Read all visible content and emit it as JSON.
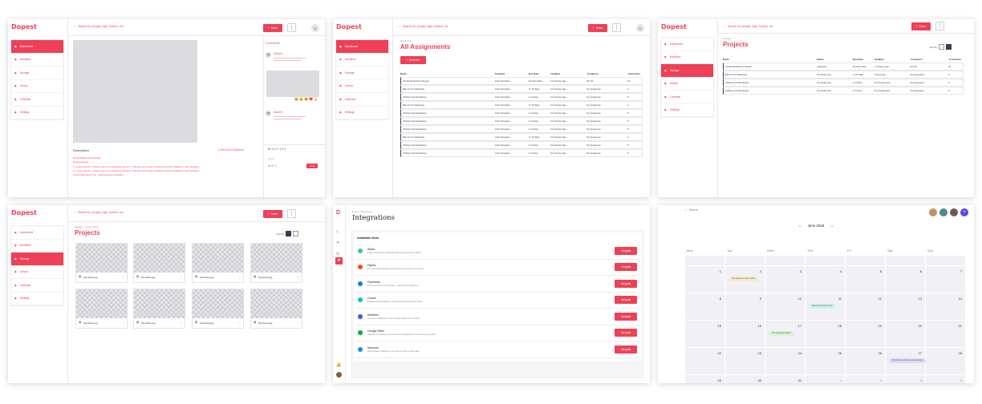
{
  "brand": "Dopest",
  "search_placeholder": "Search for people, logs, folders, etc",
  "share_label": "Share",
  "avatar_initial": "D",
  "nav": [
    "Dashboard",
    "Workflow",
    "Storage",
    "Library",
    "Calendar",
    "Settings"
  ],
  "colors": {
    "accent": "#ee4056",
    "dark": "#3a3a55",
    "violet": "#5b45e0"
  },
  "detail": {
    "comments_title": "Comments",
    "c1_name": "David K",
    "c2_name": "David K",
    "emoji": "😂 😮 🤩 ❤️ 💡",
    "desc_title": "Description",
    "record_label": "Record a Comment",
    "post_name": "Social Media Post Design",
    "req_label": "Requirements",
    "req1": "1. Lorem ipsum, or lipsum as it is sometimes known, is dummy text used in laying out print, graphic or web designs.",
    "req2": "2. Lorem ipsum, or lipsum as it is sometimes known, is dummy text used in laying out print, graphic or web designs.",
    "visual_ref": "Visual Reference link - www.google.com/abcd",
    "reply_placeholder": "Reply",
    "send_label": "Send",
    "toolbar": "B  I  U  |  ✎  |  ≡  ≡"
  },
  "assignments": {
    "crumb": "Dashboard",
    "title": "All Assignments",
    "new_label": "New Item",
    "headers": [
      "Name",
      "Template",
      "Due Date",
      "Updated",
      "Assignees",
      "Comments"
    ],
    "rows": [
      [
        "Social Media Post Design",
        "Auto Template",
        "No Due Date",
        "14 minutes ago",
        "DA  SA",
        "15"
      ],
      [
        "Banner for Marketing",
        "Auto Template",
        "In 15 days",
        "15 minutes ago",
        "No Assignees",
        "3"
      ],
      [
        "Visiting Card Redesign",
        "Auto Template",
        "In 5 days",
        "16 minutes ago",
        "No Assignees",
        "5"
      ],
      [
        "Banner for Marketing",
        "Auto Template",
        "In 15 days",
        "15 minutes ago",
        "No Assignees",
        "3"
      ],
      [
        "Visiting Card Redesign",
        "Auto Template",
        "In 5 days",
        "16 minutes ago",
        "No Assignees",
        "5"
      ],
      [
        "Visiting Card Redesign",
        "Auto Template",
        "In 5 days",
        "16 minutes ago",
        "No Assignees",
        "5"
      ],
      [
        "Visiting Card Redesign",
        "Auto Template",
        "In 5 days",
        "16 minutes ago",
        "No Assignees",
        "5"
      ],
      [
        "Banner for Marketing",
        "Auto Template",
        "In 15 days",
        "15 minutes ago",
        "No Assignees",
        "3"
      ],
      [
        "Visiting Card Redesign",
        "Auto Template",
        "In 5 days",
        "16 minutes ago",
        "No Assignees",
        "5"
      ],
      [
        "Visiting Card Redesign",
        "Auto Template",
        "In 5 days",
        "16 minutes ago",
        "No Assignees",
        "5"
      ]
    ]
  },
  "projects": {
    "crumb": "Storage",
    "title": "Projects",
    "view_label": "View By",
    "headers": [
      "Name",
      "Status",
      "Due Date",
      "Updated",
      "Assignees",
      "Comments"
    ],
    "rows": [
      [
        "Social Media Post Design",
        "Approved",
        "No Due Date",
        "1 minutes ago",
        "DA  SA",
        "15"
      ],
      [
        "Banner for Marketing",
        "Not Approved",
        "In 15 days",
        "5 days ago",
        "No Assignees",
        "3"
      ],
      [
        "Visiting Card Redesign",
        "Not Approved",
        "In 5 days",
        "15 minutes ago",
        "No Assignees",
        "5"
      ],
      [
        "Visiting Card Redesign",
        "Not Approved",
        "In 5 days",
        "15 minutes ago",
        "No Assignees",
        "5"
      ]
    ]
  },
  "grid": {
    "crumb": "Storage > Project Name",
    "title": "Projects",
    "view_label": "View By",
    "file_name": "File Name.jpg"
  },
  "integrations": {
    "crumb": "Home > Integrations",
    "title": "Integrations",
    "section": "Available Now",
    "button": "Integrate",
    "items": [
      {
        "name": "Slack",
        "desc": "Track several tools, calendars and update directly in Slack"
      },
      {
        "name": "Figma",
        "desc": "Put your Figma designs into Dopest as list items to comment"
      },
      {
        "name": "Facebook",
        "desc": "Track comments on facebook + directly from Facebook"
      },
      {
        "name": "Canva",
        "desc": "Enhance Canva design in the Dopest at the click of a button"
      },
      {
        "name": "Webflow",
        "desc": "Connect to Webflow to your website directly from Dopest"
      },
      {
        "name": "Google Meet",
        "desc": "Integrate a meeting to comment and collaborate in real time at any session"
      },
      {
        "name": "Intercom",
        "desc": "Post contacts straight to your Intercom lists to help sales"
      }
    ],
    "icon_colors": [
      "#36c5a8",
      "#f24e1e",
      "#1877f2",
      "#00c4cc",
      "#4353ff",
      "#00ac47",
      "#1f8ded"
    ]
  },
  "calendar": {
    "search": "Search",
    "month": "June 2019",
    "days": [
      "Mon",
      "Tue",
      "Wed",
      "Thu",
      "Fri",
      "Sat",
      "Sun"
    ],
    "weeks": [
      [
        "",
        "",
        "",
        "",
        "",
        "",
        ""
      ],
      [
        "1",
        "2",
        "3",
        "4",
        "5",
        "6",
        "7"
      ],
      [
        "8",
        "9",
        "10",
        "11",
        "12",
        "13",
        "14"
      ],
      [
        "15",
        "16",
        "17",
        "18",
        "19",
        "20",
        "21"
      ],
      [
        "22",
        "23",
        "24",
        "25",
        "26",
        "27",
        "28"
      ],
      [
        "29",
        "30",
        "31",
        "1",
        "2",
        "3",
        "4"
      ]
    ],
    "ev1": "The greatest in the world",
    "ev2": "Space the final frontier",
    "ev3": "The amazing hacker",
    "ev4": "The basics of buying a telescope",
    "ev5": "Guide you in getting a telescope"
  }
}
